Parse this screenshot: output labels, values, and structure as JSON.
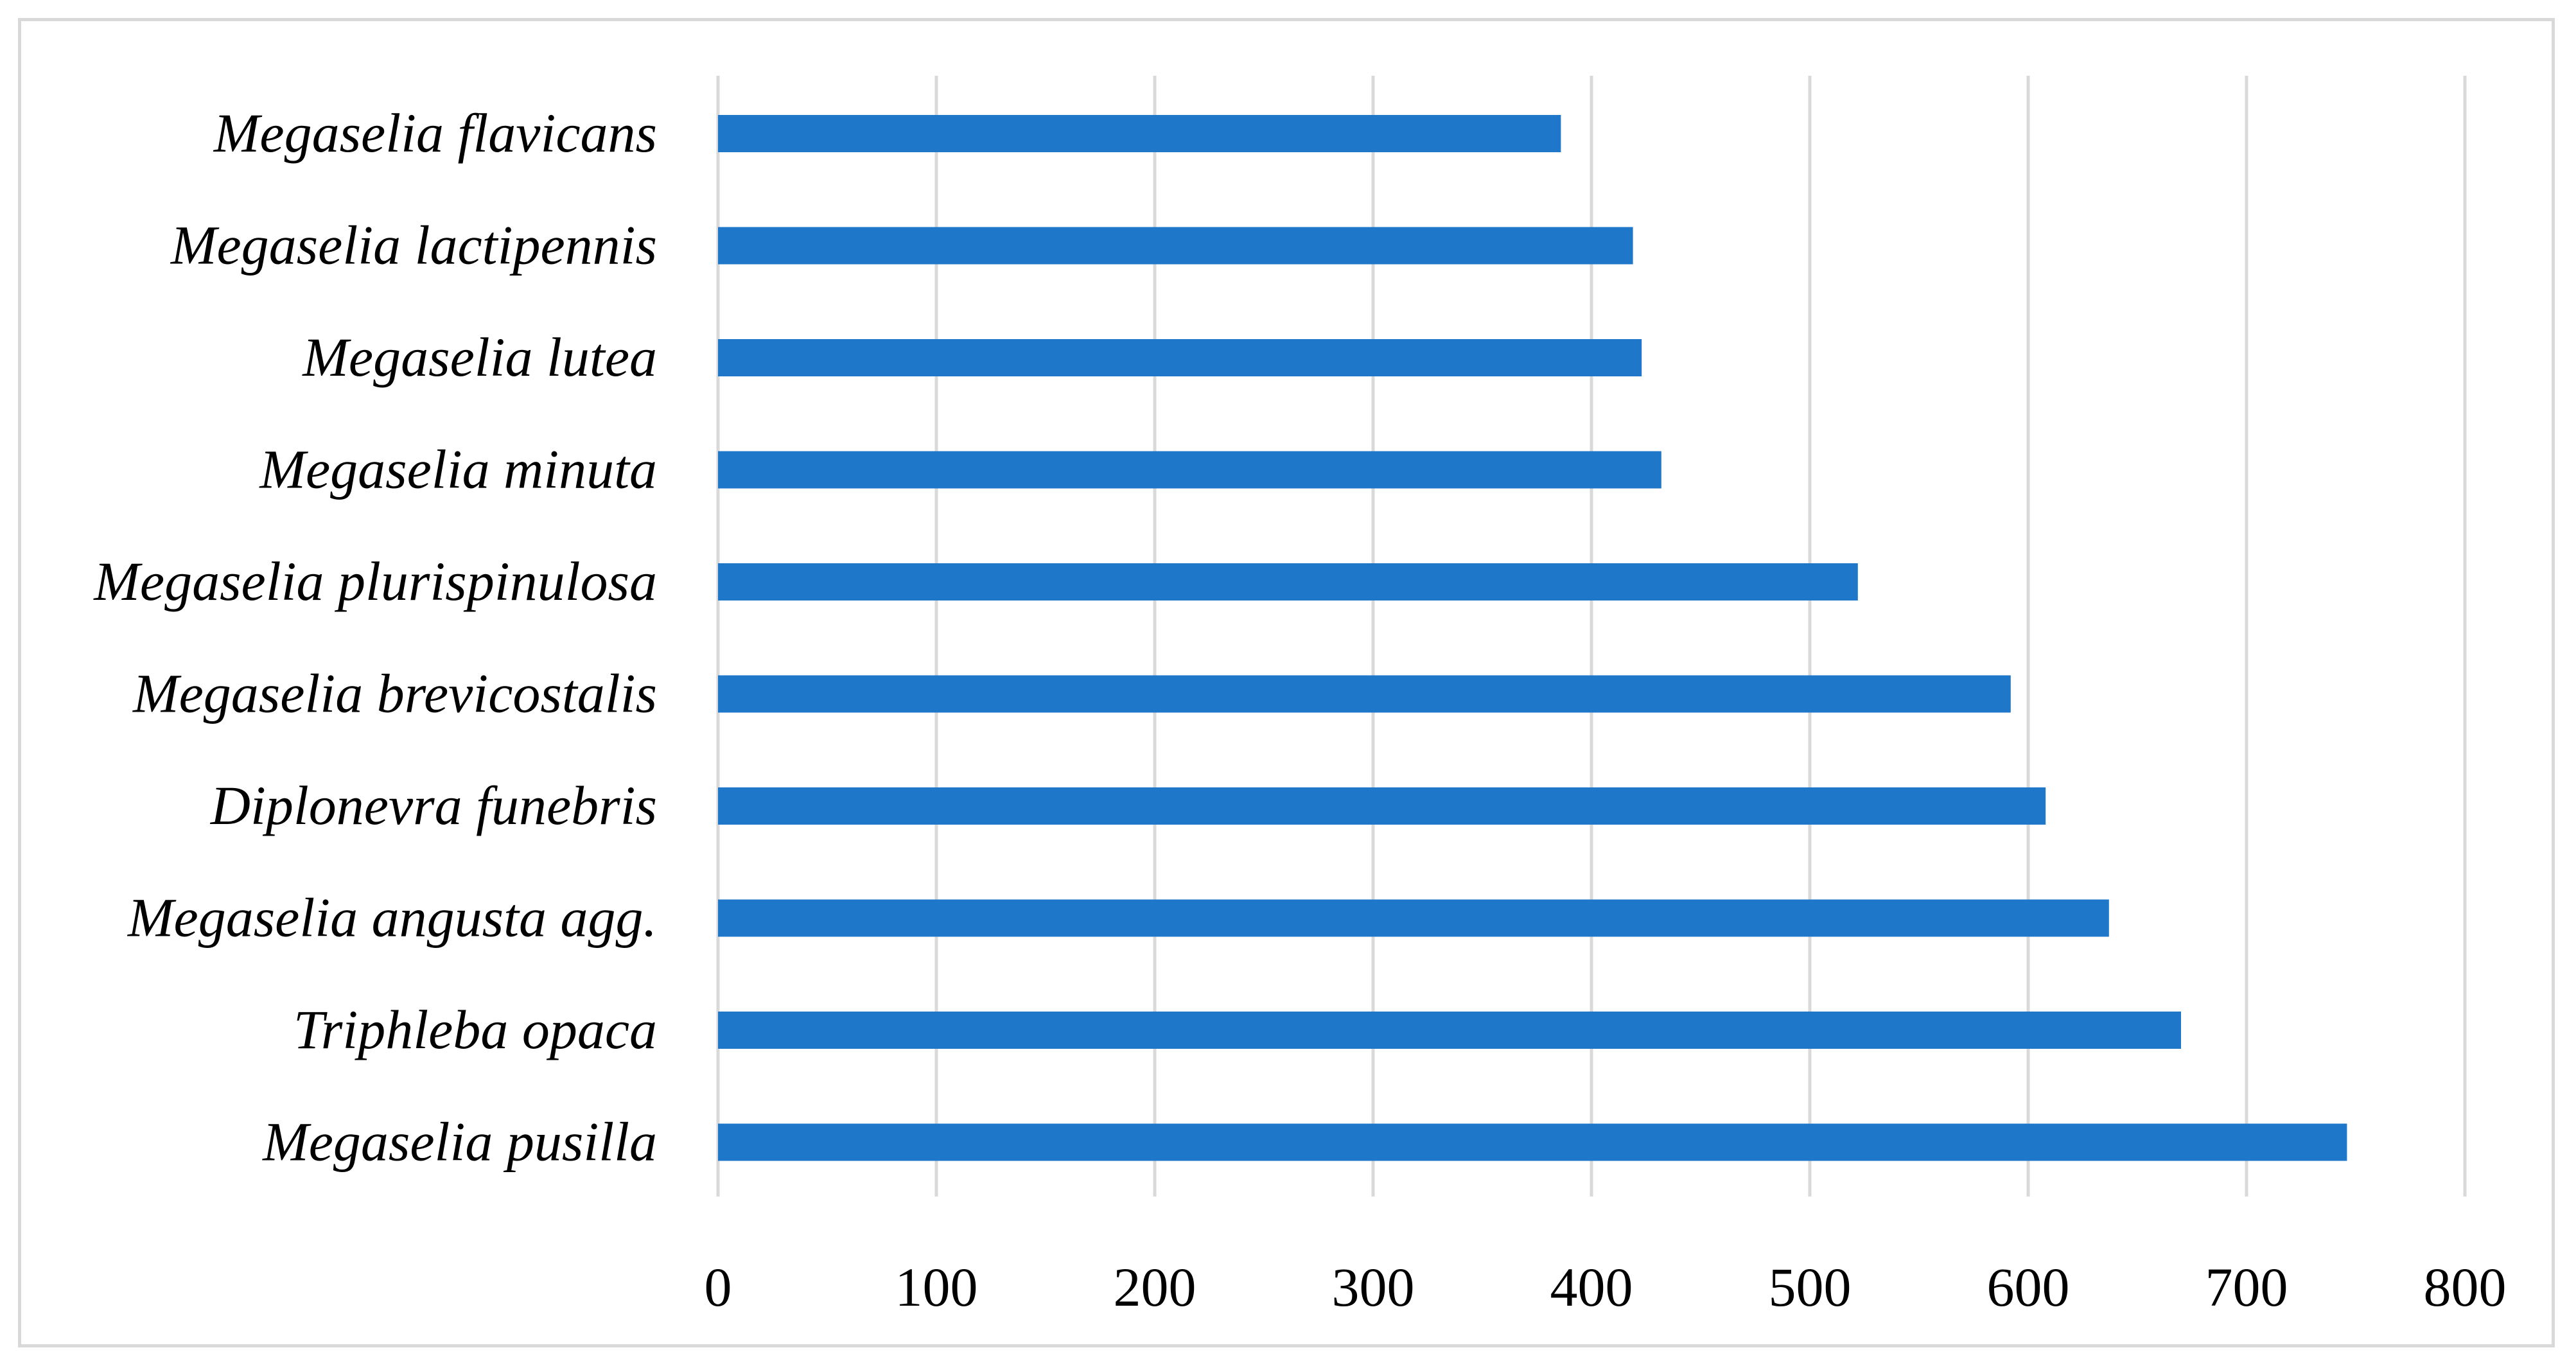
{
  "chart_data": {
    "type": "bar",
    "orientation": "horizontal",
    "title": "",
    "xlabel": "",
    "ylabel": "",
    "categories": [
      "Megaselia flavicans",
      "Megaselia lactipennis",
      "Megaselia lutea",
      "Megaselia minuta",
      "Megaselia plurispinulosa",
      "Megaselia brevicostalis",
      "Diplonevra funebris",
      "Megaselia angusta agg.",
      "Triphleba opaca",
      "Megaselia pusilla"
    ],
    "values": [
      386,
      419,
      423,
      432,
      522,
      592,
      608,
      637,
      670,
      746
    ],
    "xlim": [
      0,
      800
    ],
    "xticks": [
      "0",
      "100",
      "200",
      "300",
      "400",
      "500",
      "600",
      "700",
      "800"
    ],
    "grid": "vertical",
    "legend": "none",
    "bar_color": "#1f77c9",
    "grid_color": "#d9d9d9"
  }
}
